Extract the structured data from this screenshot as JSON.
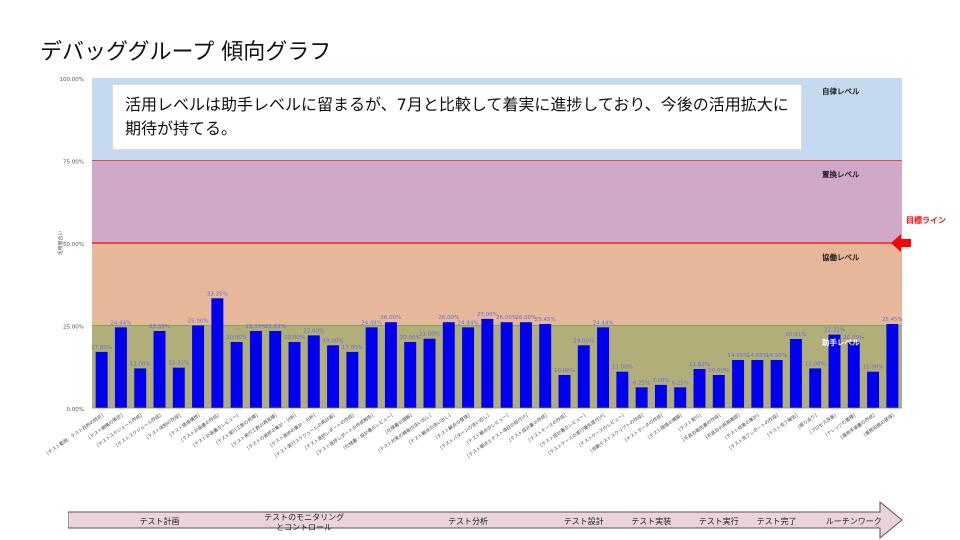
{
  "page": {
    "title": "デバッググループ 傾向グラフ"
  },
  "callout": "活用レベルは助手レベルに留まるが、7月と比較して着実に進捗しており、今後の活用拡大に期待が持てる。",
  "target_line_label": "目標ライン",
  "colors": {
    "bar": "#0000ee",
    "bar_label": "#6a6ae0",
    "target": "#ff0000",
    "legend_target": "#ff0000"
  },
  "chart_data": {
    "type": "bar",
    "ylim": [
      0,
      100
    ],
    "yticks": [
      "0.00%",
      "25.00%",
      "50.00%",
      "75.00%",
      "100.00%"
    ],
    "ylabel": "活用度合い",
    "bands": [
      {
        "name": "助手レベル",
        "from": 0,
        "to": 25,
        "color": "#b1ae7a"
      },
      {
        "name": "協働レベル",
        "from": 25,
        "to": 50,
        "color": "#e6b899"
      },
      {
        "name": "置換レベル",
        "from": 50,
        "to": 75,
        "color": "#d1a9c8"
      },
      {
        "name": "自律レベル",
        "from": 75,
        "to": 100,
        "color": "#c5d9f1"
      }
    ],
    "target_value": 50,
    "categories": [
      "[テスト範囲、テスト目的の特定]",
      "[テスト戦略の策定]",
      "[テストスケジュール作成]",
      "[テストスケジュール作成]",
      "[テスト体制の作成]",
      "[テスト環境構想]",
      "[テスト計画書の作成]",
      "[テスト計画書のレビュー]",
      "[テスト実行工数の見積]",
      "[テスト実行工数の再見積]",
      "[テストの進捗の集計・分析]",
      "[テスト進捗の集計・分析]",
      "[テスト実行スケジュールの再計画]",
      "[テスト進捗レポートの作成]",
      "[テスト進捗レポートの作成報告]",
      "[仕様書・設計書のレビュー]",
      "[仕様書の理解]",
      "[テスト対象の機能の洗い出し]",
      "[テスト観点の洗い出し]",
      "[テスト観点の整理]",
      "[テストパターンの洗い出し]",
      "[テスト観点のレビュー]",
      "[テスト観点とテスト項目の紐付け]",
      "[テスト設計書の作成]",
      "[テストケースの作成]",
      "[テスト設計書のレビュー]",
      "[テストケースの実行優先度付け]",
      "[テストケースのレビュー]",
      "[自動テストスクリプトの作成]",
      "[テストデータの作成]",
      "[テスト環境の構築]",
      "[テスト実行]",
      "[不具合報告書の作成]",
      "[不具合の再現確認]",
      "[テスト結果の集計]",
      "[テスト完了レポートの作成]",
      "[テスト完了報告]",
      "[振り返り]",
      "[プロセス改善]",
      "[ナレッジの蓄積]",
      "[運用手順書の作成]",
      "[業務知識の習得]"
    ],
    "values": [
      17.0,
      24.44,
      12.0,
      23.33,
      12.22,
      25.0,
      33.25,
      20.0,
      23.33,
      23.33,
      20.0,
      22.0,
      19.0,
      17.0,
      24.44,
      26.0,
      20.0,
      21.0,
      26.0,
      24.44,
      27.0,
      26.0,
      26.0,
      25.45,
      10.0,
      19.0,
      24.44,
      11.0,
      6.25,
      7.0,
      6.25,
      11.82,
      10.0,
      14.55,
      14.55,
      14.55,
      20.91,
      12.0,
      22.22,
      20.0,
      11.0,
      25.45
    ],
    "value_labels": [
      "17.00%",
      "24.44%",
      "12.00%",
      "23.33%",
      "12.22%",
      "25.00%",
      "33.25%",
      "20.00%",
      "23.33%",
      "23.33%",
      "20.00%",
      "22.00%",
      "19.00%",
      "17.00%",
      "24.44%",
      "26.00%",
      "20.00%",
      "21.00%",
      "26.00%",
      "24.44%",
      "27.00%",
      "26.00%",
      "26.00%",
      "25.45%",
      "10.00%",
      "19.00%",
      "24.44%",
      "11.00%",
      "6.25%",
      "7.00%",
      "6.25%",
      "11.82%",
      "10.00%",
      "14.55%",
      "14.55%",
      "14.55%",
      "20.91%",
      "12.00%",
      "22.22%",
      "20.00%",
      "11.00%",
      "25.45%"
    ]
  },
  "phases": [
    {
      "label": "テスト計画",
      "start": 0,
      "end": 6
    },
    {
      "label": "テストのモニタリング\nとコントロール",
      "start": 7,
      "end": 14
    },
    {
      "label": "テスト分析",
      "start": 15,
      "end": 23
    },
    {
      "label": "テスト設計",
      "start": 24,
      "end": 26
    },
    {
      "label": "テスト実装",
      "start": 27,
      "end": 30
    },
    {
      "label": "テスト実行",
      "start": 31,
      "end": 33
    },
    {
      "label": "テスト完了",
      "start": 34,
      "end": 36
    },
    {
      "label": "ルーチンワーク",
      "start": 37,
      "end": 41
    }
  ]
}
